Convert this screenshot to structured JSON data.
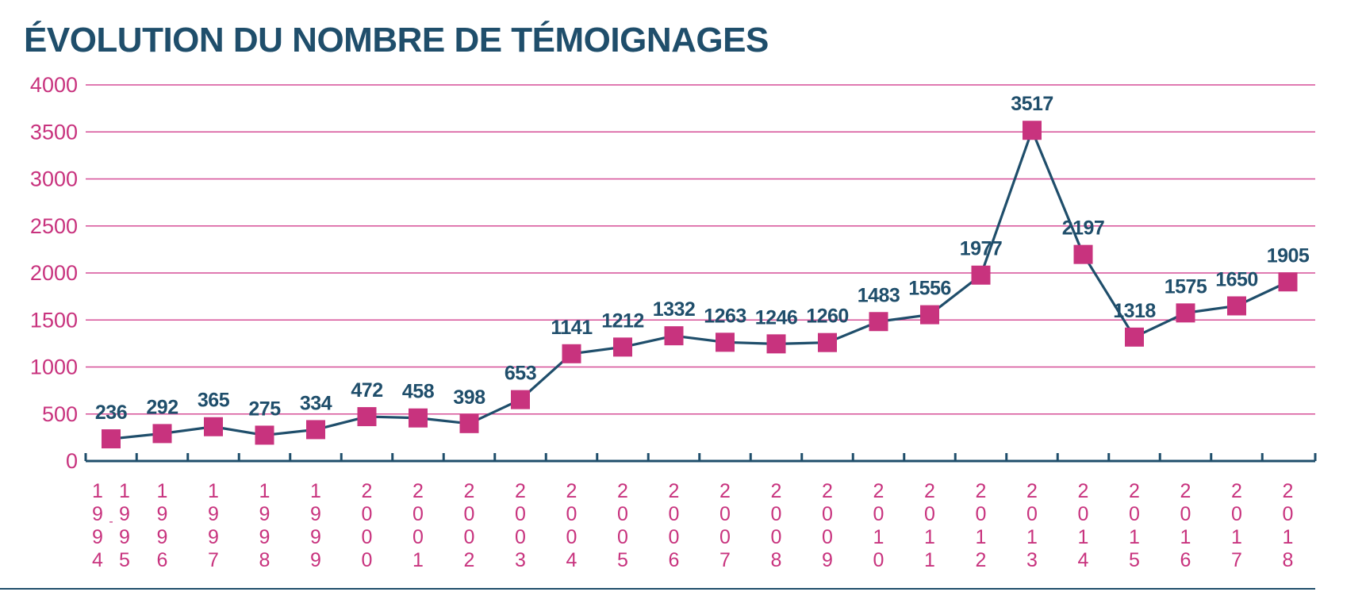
{
  "chart_data": {
    "type": "line",
    "title": "ÉVOLUTION DU NOMBRE DE TÉMOIGNAGES",
    "xlabel": "",
    "ylabel": "",
    "ylim": [
      0,
      4000
    ],
    "yticks": [
      0,
      500,
      1000,
      1500,
      2000,
      2500,
      3000,
      3500,
      4000
    ],
    "grid": true,
    "legend": "none",
    "categories": [
      "1994-1995",
      "1996",
      "1997",
      "1998",
      "1999",
      "2000",
      "2001",
      "2002",
      "2003",
      "2004",
      "2005",
      "2006",
      "2007",
      "2008",
      "2009",
      "2010",
      "2011",
      "2012",
      "2013",
      "2014",
      "2015",
      "2016",
      "2017",
      "2018"
    ],
    "series": [
      {
        "values": [
          236,
          292,
          365,
          275,
          334,
          472,
          458,
          398,
          653,
          1141,
          1212,
          1332,
          1263,
          1246,
          1260,
          1483,
          1556,
          1977,
          3517,
          2197,
          1318,
          1575,
          1650,
          1905
        ]
      }
    ],
    "colors": {
      "title": "#1f4e6b",
      "line": "#1f4e6b",
      "marker": "#c8337e",
      "grid": "#d64f97",
      "tick_labels": "#c8337e",
      "data_labels": "#1f4e6b",
      "axis": "#1f4e6b"
    }
  }
}
